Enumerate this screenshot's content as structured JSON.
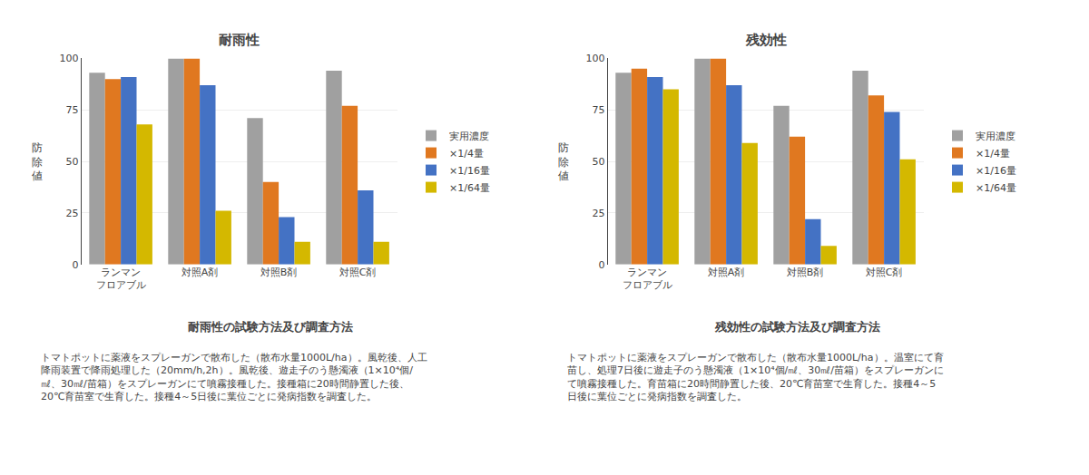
{
  "chart_data": [
    {
      "type": "bar",
      "title": "耐雨性",
      "categories": [
        "ランマン\nフロアブル",
        "対照A剤",
        "対照B剤",
        "対照C剤"
      ],
      "series": [
        {
          "name": "実用濃度",
          "color": "#a0a0a0",
          "values": [
            93,
            100,
            71,
            94
          ]
        },
        {
          "name": "×1/4量",
          "color": "#e07820",
          "values": [
            90,
            100,
            40,
            77
          ]
        },
        {
          "name": "×1/16量",
          "color": "#4472c4",
          "values": [
            91,
            87,
            23,
            36
          ]
        },
        {
          "name": "×1/64量",
          "color": "#d4b800",
          "values": [
            68,
            26,
            11,
            11
          ]
        }
      ],
      "ylabel": "防\n除\n値",
      "ylim": [
        0,
        100
      ],
      "yticks": [
        0,
        25,
        50,
        75,
        100
      ],
      "grid": true,
      "legend": "right",
      "annotations": [
        "耐雨性の試験方法及び調査方法",
        "トマトポットに薬液をスプレーガンで散布した（散布水量1000L/ha）。風乾後、人工\n降雨装置で降雨処理した（20mm/h,2h）。風乾後、遊走子のう懸濁液（1×10⁴個/\n㎖、30㎖/苗箱）をスプレーガンにて噴霧接種した。接種箱に20時間静置した後、\n20℃育苗室で生育した。接種4～5日後に葉位ごとに発病指数を調査した。"
      ]
    },
    {
      "type": "bar",
      "title": "残効性",
      "categories": [
        "ランマン\nフロアブル",
        "対照A剤",
        "対照B剤",
        "対照C剤"
      ],
      "series": [
        {
          "name": "実用濃度",
          "color": "#a0a0a0",
          "values": [
            93,
            100,
            77,
            94
          ]
        },
        {
          "name": "×1/4量",
          "color": "#e07820",
          "values": [
            95,
            100,
            62,
            82
          ]
        },
        {
          "name": "×1/16量",
          "color": "#4472c4",
          "values": [
            91,
            87,
            22,
            74
          ]
        },
        {
          "name": "×1/64量",
          "color": "#d4b800",
          "values": [
            85,
            59,
            9,
            51
          ]
        }
      ],
      "ylabel": "防\n除\n値",
      "ylim": [
        0,
        100
      ],
      "yticks": [
        0,
        25,
        50,
        75,
        100
      ],
      "grid": true,
      "legend": "right",
      "annotations": [
        "残効性の試験方法及び調査方法",
        "トマトポットに薬液をスプレーガンで散布した（散布水量1000L/ha）。温室にて育\n苗し、処理7日後に遊走子のう懸濁液（1×10⁴個/㎖、30㎖/苗箱）をスプレーガンに\nて噴霧接種した。育苗箱に20時間静置した後、20℃育苗室で生育した。接種4～5\n日後に葉位ごとに発病指数を調査した。"
      ]
    }
  ]
}
